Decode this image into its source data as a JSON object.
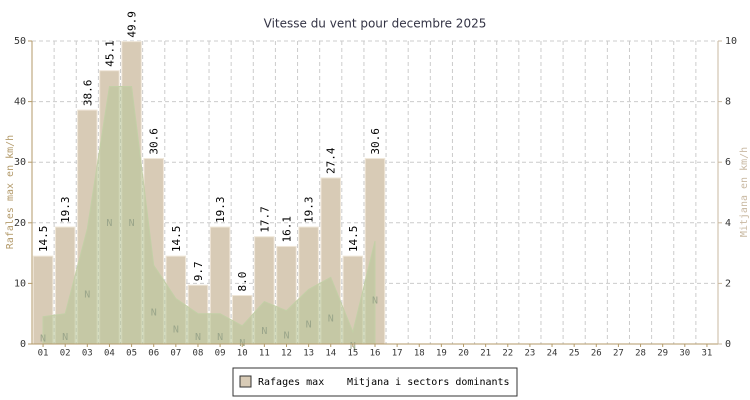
{
  "chart_data": {
    "type": "bar",
    "title": "Vitesse du vent pour decembre 2025",
    "y_label": "Rafales max en km/h",
    "y2_label": "Mitjana en km/h",
    "categories": [
      "01",
      "02",
      "03",
      "04",
      "05",
      "06",
      "07",
      "08",
      "09",
      "10",
      "11",
      "12",
      "13",
      "14",
      "15",
      "16",
      "17",
      "18",
      "19",
      "20",
      "21",
      "22",
      "23",
      "24",
      "25",
      "26",
      "27",
      "28",
      "29",
      "30",
      "31"
    ],
    "ylim": [
      0,
      50
    ],
    "yticks": [
      0,
      10,
      20,
      30,
      40,
      50
    ],
    "y2lim": [
      0,
      10
    ],
    "y2ticks": [
      0,
      2,
      4,
      6,
      8,
      10
    ],
    "grid": true,
    "series": [
      {
        "name": "Rafages max",
        "color": "#d8cbb6",
        "values": [
          14.5,
          19.3,
          38.6,
          45.1,
          49.9,
          30.6,
          14.5,
          9.7,
          19.3,
          8.0,
          17.7,
          16.1,
          19.3,
          27.4,
          14.5,
          30.6,
          null,
          null,
          null,
          null,
          null,
          null,
          null,
          null,
          null,
          null,
          null,
          null,
          null,
          null,
          null
        ],
        "value_labels": [
          "14.5",
          "19.3",
          "38.6",
          "45.1",
          "49.9",
          "30.6",
          "14.5",
          "9.7",
          "19.3",
          "8.0",
          "17.7",
          "16.1",
          "19.3",
          "27.4",
          "14.5",
          "30.6",
          null,
          null,
          null,
          null,
          null,
          null,
          null,
          null,
          null,
          null,
          null,
          null,
          null,
          null,
          null
        ]
      },
      {
        "name": "Mitjana i sectors dominants",
        "color": "#b9c79a",
        "axis": "y2",
        "values": [
          0.9,
          1.0,
          3.8,
          8.5,
          8.5,
          2.6,
          1.5,
          1.0,
          1.0,
          0.6,
          1.4,
          1.1,
          1.8,
          2.2,
          0.4,
          3.4,
          null,
          null,
          null,
          null,
          null,
          null,
          null,
          null,
          null,
          null,
          null,
          null,
          null,
          null,
          null
        ],
        "sectors": [
          "N",
          "N",
          "N",
          "N",
          "N",
          "N",
          "N",
          "N",
          "N",
          "N",
          "N",
          "N",
          "N",
          "N",
          "N",
          "N",
          null,
          null,
          null,
          null,
          null,
          null,
          null,
          null,
          null,
          null,
          null,
          null,
          null,
          null,
          null
        ]
      }
    ]
  }
}
